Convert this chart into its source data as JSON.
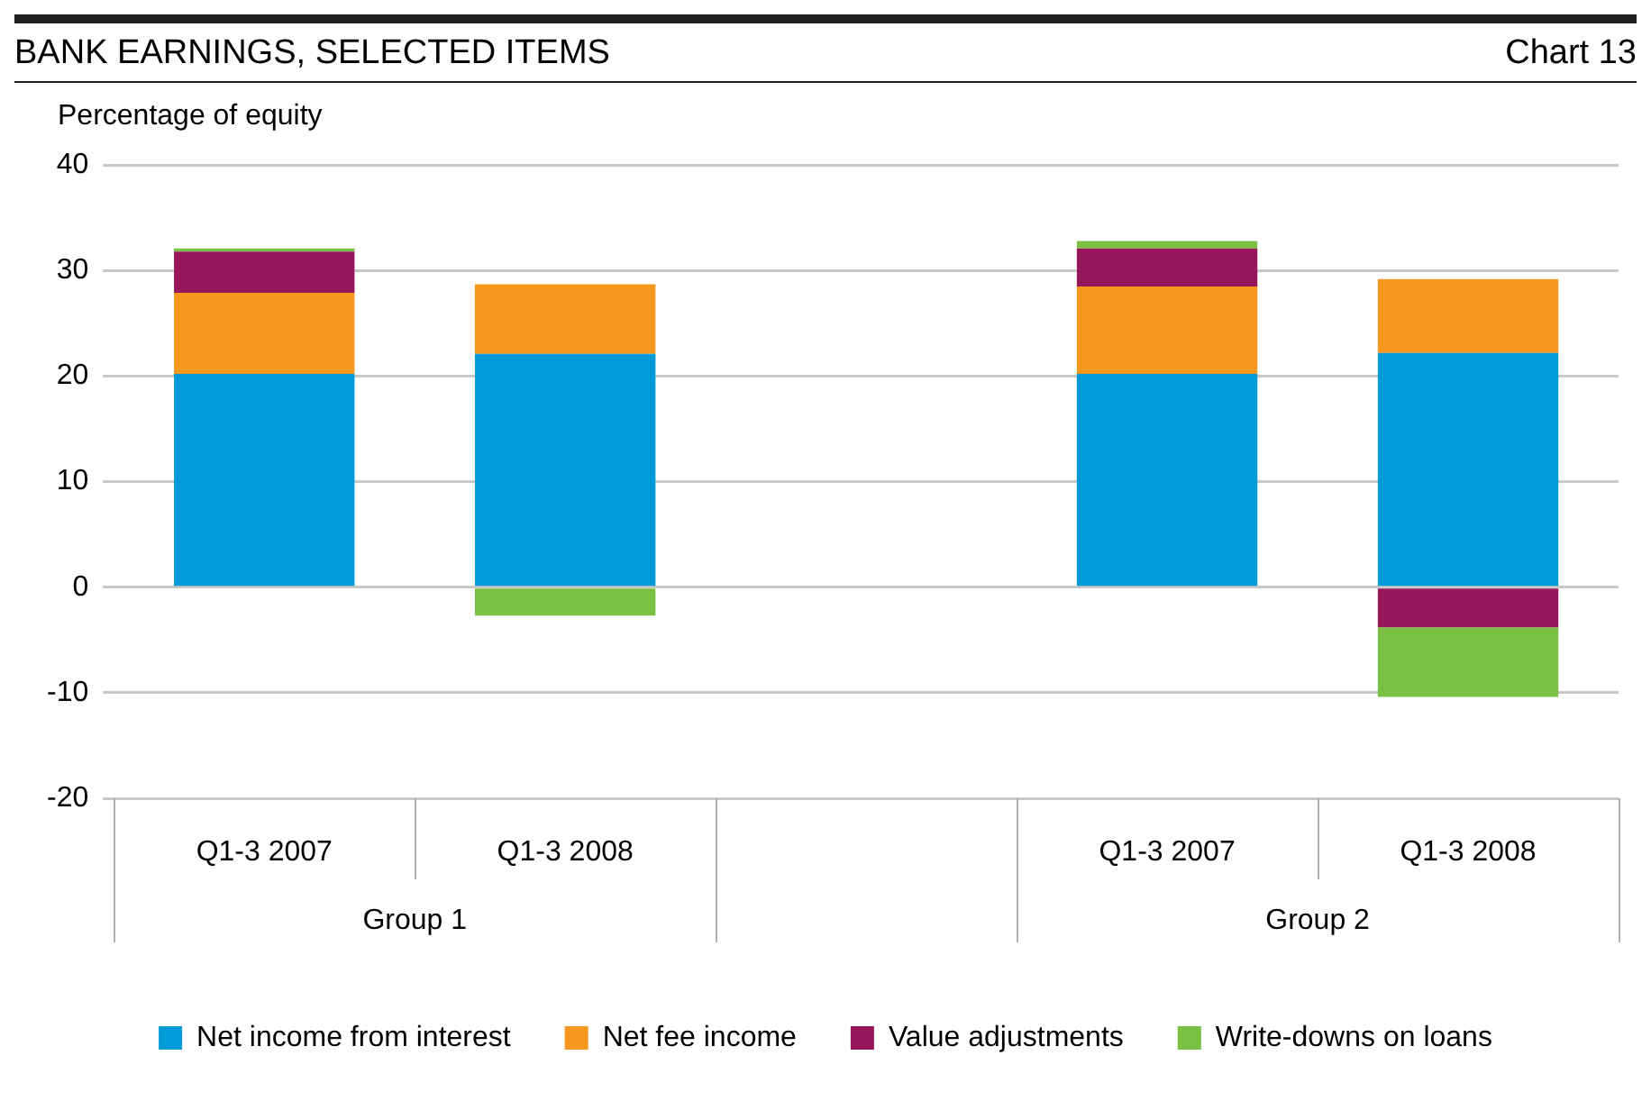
{
  "chart_data": {
    "type": "bar",
    "title": "BANK EARNINGS, SELECTED ITEMS",
    "subtitle": "Chart 13",
    "ylabel": "Percentage of equity",
    "categories": [
      "Q1-3 2007",
      "Q1-3 2008",
      null,
      "Q1-3 2007",
      "Q1-3 2008"
    ],
    "series": [
      {
        "name": "Net income from interest",
        "color": "#009ad8",
        "values": [
          20.2,
          22.1,
          null,
          20.2,
          22.2
        ]
      },
      {
        "name": "Net fee income",
        "color": "#f7971e",
        "values": [
          7.7,
          6.6,
          null,
          8.3,
          7.0
        ]
      },
      {
        "name": "Value adjustments",
        "color": "#98165a",
        "values": [
          3.9,
          null,
          null,
          3.6,
          -3.8
        ]
      },
      {
        "name": "Write-downs on loans",
        "color": "#7ac143",
        "values": [
          0.3,
          -2.7,
          null,
          0.7,
          -6.6
        ]
      }
    ],
    "stacked": true,
    "ylim": [
      -20,
      40
    ],
    "yticks": [
      -20,
      -10,
      0,
      10,
      20,
      30,
      40
    ],
    "grid": "y",
    "legend": "bottom",
    "annotations": [
      "Group 1",
      "Group 2"
    ]
  }
}
